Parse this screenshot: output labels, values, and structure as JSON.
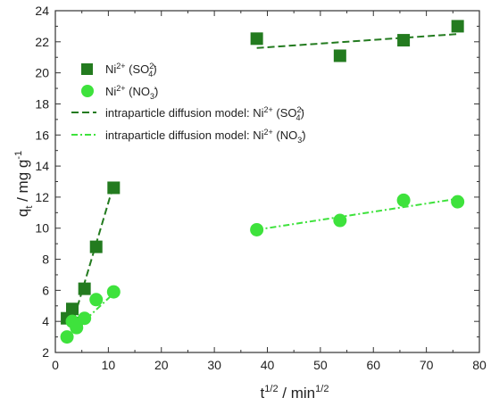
{
  "chart_data": {
    "type": "scatter",
    "xlabel": {
      "base": "t",
      "sup": "1/2",
      "rest": " / min",
      "sup2": "1/2"
    },
    "ylabel": {
      "base": "q",
      "sub": "t",
      "rest": " / mg g",
      "sup": "-1"
    },
    "xlim": [
      0,
      80
    ],
    "ylim": [
      2,
      24
    ],
    "x_ticks": [
      0,
      10,
      20,
      30,
      40,
      50,
      60,
      70,
      80
    ],
    "y_ticks": [
      2,
      4,
      6,
      8,
      10,
      12,
      14,
      16,
      18,
      20,
      22,
      24
    ],
    "grid": false,
    "legend_position": "top-left",
    "series": [
      {
        "name": "Ni2+ (SO42-)",
        "label_parts": {
          "ion": "Ni",
          "ion_sup": "2+",
          "open": " (SO",
          "sub": "4",
          "sup": "2-",
          "close": ")"
        },
        "marker": "square",
        "color": "#237b1f",
        "points": [
          [
            2.2,
            4.2
          ],
          [
            3.2,
            4.8
          ],
          [
            4.0,
            3.9
          ],
          [
            5.5,
            6.1
          ],
          [
            7.7,
            8.8
          ],
          [
            11.0,
            12.6
          ],
          [
            38.0,
            22.2
          ],
          [
            53.7,
            21.1
          ],
          [
            65.7,
            22.1
          ],
          [
            75.9,
            23.0
          ]
        ]
      },
      {
        "name": "Ni2+ (NO3-)",
        "label_parts": {
          "ion": "Ni",
          "ion_sup": "2+",
          "open": " (NO",
          "sub": "3",
          "sup": "-",
          "close": ")"
        },
        "marker": "circle",
        "color": "#3ee23c",
        "points": [
          [
            2.2,
            3.0
          ],
          [
            3.2,
            4.0
          ],
          [
            4.0,
            3.6
          ],
          [
            5.5,
            4.2
          ],
          [
            7.7,
            5.4
          ],
          [
            11.0,
            5.9
          ],
          [
            38.0,
            9.9
          ],
          [
            53.7,
            10.5
          ],
          [
            65.7,
            11.8
          ],
          [
            75.9,
            11.7
          ]
        ]
      }
    ],
    "fit_lines": [
      {
        "name": "intraparticle diffusion model: Ni2+ (SO42-)",
        "label_parts": {
          "prefix": "intraparticle diffusion model: ",
          "ion": "Ni",
          "ion_sup": "2+",
          "open": " (SO",
          "sub": "4",
          "sup": "2-",
          "close": ")"
        },
        "dash": "dash",
        "color": "#237b1f",
        "segments": [
          [
            [
              3.0,
              3.6
            ],
            [
              11.0,
              12.8
            ]
          ],
          [
            [
              38.0,
              21.6
            ],
            [
              76.0,
              22.5
            ]
          ]
        ]
      },
      {
        "name": "intraparticle diffusion model: Ni2+ (NO3-)",
        "label_parts": {
          "prefix": "intraparticle diffusion model: ",
          "ion": "Ni",
          "ion_sup": "2+",
          "open": " (NO",
          "sub": "3",
          "sup": "-",
          "close": ")"
        },
        "dash": "dashdot",
        "color": "#3ee23c",
        "segments": [
          [
            [
              2.2,
              3.0
            ],
            [
              11.0,
              5.8
            ]
          ],
          [
            [
              38.0,
              9.9
            ],
            [
              76.0,
              11.9
            ]
          ]
        ]
      }
    ]
  }
}
